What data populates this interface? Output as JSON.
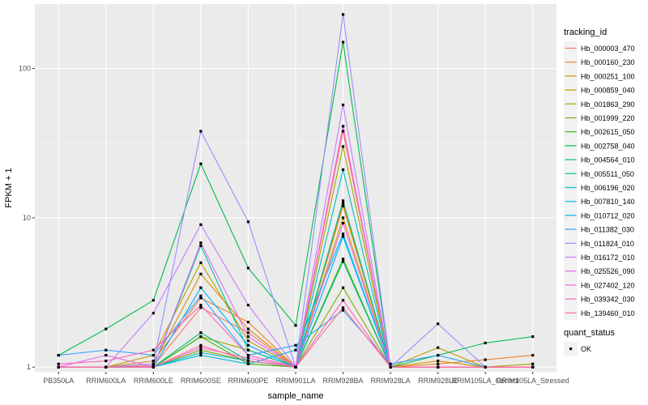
{
  "chart_data": {
    "type": "line",
    "title": "",
    "xlabel": "sample_name",
    "ylabel": "FPKM + 1",
    "y_scale": "log10",
    "ylim": [
      0.93,
      270
    ],
    "y_ticks": [
      1,
      10,
      100
    ],
    "y_tick_labels": [
      "1",
      "10",
      "100"
    ],
    "grid": true,
    "categories": [
      "PB350LA",
      "RRIM600LA",
      "RRIM600LE",
      "RRIM600SE",
      "RRIM600PE",
      "RRIM901LA",
      "RRIM928BA",
      "RRIM928LA",
      "RRIM928LE",
      "RRIM105LA_Control",
      "RRIM105LA_Stressed"
    ],
    "series": [
      {
        "name": "Hb_000003_470",
        "color": "#F8766D",
        "values": [
          1.0,
          1.0,
          1.02,
          2.5,
          1.7,
          1.0,
          38,
          1.0,
          1.0,
          1.0,
          1.0
        ]
      },
      {
        "name": "Hb_000160_230",
        "color": "#EA8331",
        "values": [
          1.0,
          1.0,
          1.1,
          2.9,
          2.0,
          1.0,
          12,
          1.0,
          1.05,
          1.12,
          1.2
        ]
      },
      {
        "name": "Hb_000251_100",
        "color": "#D89000",
        "values": [
          1.0,
          1.0,
          1.05,
          4.2,
          1.8,
          1.0,
          10,
          1.0,
          1.1,
          1.0,
          1.0
        ]
      },
      {
        "name": "Hb_000859_040",
        "color": "#C09B00",
        "values": [
          1.0,
          1.0,
          1.2,
          5.0,
          1.5,
          1.0,
          12.5,
          1.0,
          1.35,
          1.0,
          1.0
        ]
      },
      {
        "name": "Hb_001863_290",
        "color": "#A3A500",
        "values": [
          1.0,
          1.0,
          1.0,
          1.6,
          1.3,
          1.0,
          30,
          1.0,
          1.0,
          1.0,
          1.05
        ]
      },
      {
        "name": "Hb_001999_220",
        "color": "#7CAE00",
        "values": [
          1.0,
          1.0,
          1.0,
          1.3,
          1.1,
          1.0,
          3.4,
          1.0,
          1.0,
          1.0,
          1.0
        ]
      },
      {
        "name": "Hb_002615_050",
        "color": "#39B600",
        "values": [
          1.0,
          1.0,
          1.0,
          1.6,
          1.05,
          1.0,
          5.3,
          1.0,
          1.0,
          1.0,
          1.0
        ]
      },
      {
        "name": "Hb_002758_040",
        "color": "#00BB4E",
        "values": [
          1.2,
          1.8,
          2.8,
          23,
          4.6,
          1.9,
          150,
          1.0,
          1.2,
          1.45,
          1.6
        ]
      },
      {
        "name": "Hb_004564_010",
        "color": "#00BF7D",
        "values": [
          1.0,
          1.0,
          1.0,
          1.7,
          1.1,
          1.0,
          5.1,
          1.0,
          1.0,
          1.0,
          1.0
        ]
      },
      {
        "name": "Hb_005511_050",
        "color": "#00C1A3",
        "values": [
          1.0,
          1.0,
          1.0,
          6.5,
          1.3,
          1.0,
          13,
          1.0,
          1.0,
          1.0,
          1.0
        ]
      },
      {
        "name": "Hb_006196_020",
        "color": "#00BFC4",
        "values": [
          1.0,
          1.0,
          1.0,
          1.25,
          1.1,
          1.0,
          21,
          1.0,
          1.0,
          1.0,
          1.0
        ]
      },
      {
        "name": "Hb_007810_140",
        "color": "#00BAE0",
        "values": [
          1.0,
          1.0,
          1.0,
          1.2,
          1.05,
          1.3,
          7.8,
          1.0,
          1.0,
          1.0,
          1.0
        ]
      },
      {
        "name": "Hb_010712_020",
        "color": "#00B0F6",
        "values": [
          1.0,
          1.0,
          1.0,
          3.4,
          1.4,
          1.0,
          7.5,
          1.0,
          1.0,
          1.0,
          1.0
        ]
      },
      {
        "name": "Hb_011382_030",
        "color": "#35A2FF",
        "values": [
          1.2,
          1.3,
          1.2,
          3.0,
          1.2,
          1.4,
          2.4,
          1.05,
          1.2,
          1.0,
          1.0
        ]
      },
      {
        "name": "Hb_011824_010",
        "color": "#9590FF",
        "values": [
          1.0,
          1.0,
          1.05,
          38,
          9.4,
          1.0,
          230,
          1.0,
          1.95,
          1.0,
          1.0
        ]
      },
      {
        "name": "Hb_016172_010",
        "color": "#C77CFF",
        "values": [
          1.0,
          1.0,
          2.3,
          9.0,
          2.6,
          1.0,
          57,
          1.0,
          1.0,
          1.0,
          1.0
        ]
      },
      {
        "name": "Hb_025526_090",
        "color": "#E76BF3",
        "values": [
          1.0,
          1.2,
          1.0,
          6.8,
          1.6,
          1.0,
          9.2,
          1.0,
          1.0,
          1.0,
          1.0
        ]
      },
      {
        "name": "Hb_027402_120",
        "color": "#FA62DB",
        "values": [
          1.0,
          1.0,
          1.0,
          1.35,
          1.15,
          1.0,
          41,
          1.0,
          1.0,
          1.0,
          1.0
        ]
      },
      {
        "name": "Hb_039342_030",
        "color": "#FF62BC",
        "values": [
          1.05,
          1.1,
          1.3,
          2.6,
          1.2,
          1.0,
          2.8,
          1.0,
          1.0,
          1.0,
          1.0
        ]
      },
      {
        "name": "Hb_139460_010",
        "color": "#FF6C91",
        "values": [
          1.0,
          1.0,
          1.0,
          1.4,
          1.1,
          1.0,
          2.5,
          1.0,
          1.0,
          1.0,
          1.0
        ]
      }
    ],
    "legend": {
      "title": "tracking_id",
      "placement": "right"
    },
    "shape_legend": {
      "title": "quant_status",
      "entries": [
        "OK"
      ]
    }
  }
}
